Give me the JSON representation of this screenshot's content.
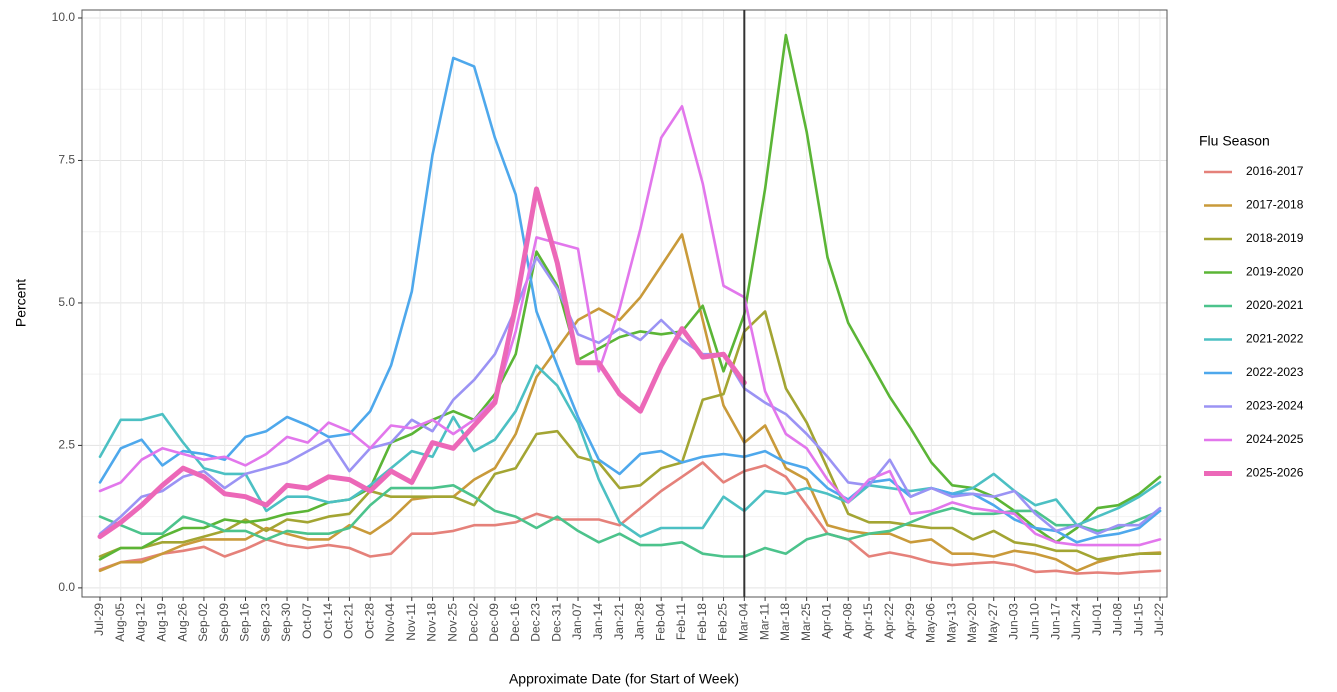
{
  "chart_data": {
    "type": "line",
    "xlabel": "Approximate Date (for Start of Week)",
    "ylabel": "Percent",
    "legend_title": "Flu Season",
    "legend": "right",
    "grid": true,
    "vline": "Mar-04",
    "ylim": [
      -0.16,
      10.14
    ],
    "yticks": [
      {
        "value": 0,
        "label": "0.0"
      },
      2.5,
      {
        "value": 5,
        "label": "5.0"
      },
      7.5,
      {
        "value": 10,
        "label": "10.0"
      }
    ],
    "categories": [
      "Jul-29",
      "Aug-05",
      "Aug-12",
      "Aug-19",
      "Aug-26",
      "Sep-02",
      "Sep-09",
      "Sep-16",
      "Sep-23",
      "Sep-30",
      "Oct-07",
      "Oct-14",
      "Oct-21",
      "Oct-28",
      "Nov-04",
      "Nov-11",
      "Nov-18",
      "Nov-25",
      "Dec-02",
      "Dec-09",
      "Dec-16",
      "Dec-23",
      "Dec-31",
      "Jan-07",
      "Jan-14",
      "Jan-21",
      "Jan-28",
      "Feb-04",
      "Feb-11",
      "Feb-18",
      "Feb-25",
      "Mar-04",
      "Mar-11",
      "Mar-18",
      "Mar-25",
      "Apr-01",
      "Apr-08",
      "Apr-15",
      "Apr-22",
      "Apr-29",
      "May-06",
      "May-13",
      "May-20",
      "May-27",
      "Jun-03",
      "Jun-10",
      "Jun-17",
      "Jun-24",
      "Jul-01",
      "Jul-08",
      "Jul-15",
      "Jul-22"
    ],
    "series": [
      {
        "name": "2016-2017",
        "color": "#E5817A",
        "values": [
          0.32,
          0.45,
          0.5,
          0.6,
          0.65,
          0.72,
          0.55,
          0.68,
          0.85,
          0.75,
          0.7,
          0.75,
          0.7,
          0.55,
          0.6,
          0.95,
          0.95,
          1.0,
          1.1,
          1.1,
          1.15,
          1.3,
          1.2,
          1.2,
          1.2,
          1.1,
          1.4,
          1.7,
          1.95,
          2.2,
          1.85,
          2.05,
          2.15,
          1.95,
          1.45,
          0.95,
          0.85,
          0.55,
          0.62,
          0.55,
          0.45,
          0.4,
          0.43,
          0.45,
          0.4,
          0.28,
          0.3,
          0.25,
          0.27,
          0.25,
          0.28,
          0.3
        ]
      },
      {
        "name": "2017-2018",
        "color": "#C99A3A",
        "values": [
          0.3,
          0.45,
          0.45,
          0.6,
          0.75,
          0.85,
          0.85,
          0.85,
          1.05,
          0.95,
          0.85,
          0.85,
          1.1,
          0.95,
          1.2,
          1.55,
          1.6,
          1.6,
          1.9,
          2.1,
          2.7,
          3.7,
          4.2,
          4.7,
          4.9,
          4.7,
          5.1,
          5.65,
          6.2,
          4.7,
          3.2,
          2.55,
          2.85,
          2.1,
          1.9,
          1.1,
          1.0,
          0.95,
          0.95,
          0.8,
          0.85,
          0.6,
          0.6,
          0.55,
          0.65,
          0.6,
          0.5,
          0.3,
          0.45,
          0.55,
          0.6,
          0.62
        ]
      },
      {
        "name": "2018-2019",
        "color": "#A3A533",
        "values": [
          0.55,
          0.7,
          0.7,
          0.8,
          0.8,
          0.9,
          1.0,
          1.2,
          1.0,
          1.2,
          1.15,
          1.25,
          1.3,
          1.7,
          1.6,
          1.6,
          1.6,
          1.6,
          1.45,
          2.0,
          2.1,
          2.7,
          2.75,
          2.3,
          2.2,
          1.75,
          1.8,
          2.1,
          2.2,
          3.3,
          3.4,
          4.5,
          4.85,
          3.5,
          2.9,
          2.1,
          1.3,
          1.15,
          1.15,
          1.1,
          1.05,
          1.05,
          0.85,
          1.0,
          0.8,
          0.75,
          0.65,
          0.65,
          0.5,
          0.55,
          0.6,
          0.6
        ]
      },
      {
        "name": "2019-2020",
        "color": "#5BB536",
        "values": [
          0.5,
          0.7,
          0.7,
          0.9,
          1.05,
          1.05,
          1.2,
          1.15,
          1.2,
          1.3,
          1.35,
          1.5,
          1.55,
          1.75,
          2.55,
          2.7,
          2.95,
          3.1,
          2.95,
          3.4,
          4.1,
          5.9,
          5.3,
          4.0,
          4.2,
          4.4,
          4.5,
          4.45,
          4.5,
          4.95,
          3.8,
          4.8,
          7.0,
          9.7,
          8.0,
          5.8,
          4.65,
          4.0,
          3.35,
          2.8,
          2.2,
          1.8,
          1.75,
          1.6,
          1.35,
          1.05,
          0.8,
          1.05,
          1.4,
          1.45,
          1.65,
          1.95
        ]
      },
      {
        "name": "2020-2021",
        "color": "#4CC38C",
        "values": [
          1.25,
          1.1,
          0.95,
          0.95,
          1.25,
          1.15,
          1.0,
          1.0,
          0.85,
          1.0,
          0.95,
          0.95,
          1.05,
          1.45,
          1.75,
          1.75,
          1.75,
          1.8,
          1.6,
          1.35,
          1.25,
          1.05,
          1.25,
          1.0,
          0.8,
          0.95,
          0.75,
          0.75,
          0.8,
          0.6,
          0.55,
          0.55,
          0.7,
          0.6,
          0.85,
          0.95,
          0.85,
          0.95,
          1.0,
          1.15,
          1.3,
          1.4,
          1.3,
          1.3,
          1.35,
          1.35,
          1.1,
          1.1,
          1.0,
          1.05,
          1.2,
          1.35
        ]
      },
      {
        "name": "2021-2022",
        "color": "#4CC0C3",
        "values": [
          2.3,
          2.95,
          2.95,
          3.05,
          2.55,
          2.1,
          2.0,
          2.0,
          1.35,
          1.6,
          1.6,
          1.5,
          1.55,
          1.8,
          2.1,
          2.4,
          2.3,
          3.0,
          2.4,
          2.6,
          3.1,
          3.9,
          3.55,
          2.9,
          1.9,
          1.15,
          0.9,
          1.05,
          1.05,
          1.05,
          1.6,
          1.35,
          1.7,
          1.65,
          1.75,
          1.65,
          1.5,
          1.8,
          1.75,
          1.7,
          1.75,
          1.65,
          1.75,
          2.0,
          1.7,
          1.45,
          1.55,
          1.1,
          1.25,
          1.4,
          1.6,
          1.85
        ]
      },
      {
        "name": "2022-2023",
        "color": "#4EA8EC",
        "values": [
          1.85,
          2.45,
          2.6,
          2.15,
          2.4,
          2.35,
          2.25,
          2.65,
          2.75,
          3.0,
          2.85,
          2.65,
          2.7,
          3.1,
          3.9,
          5.2,
          7.6,
          9.3,
          9.15,
          7.9,
          6.9,
          4.85,
          3.9,
          3.0,
          2.25,
          2.0,
          2.35,
          2.4,
          2.2,
          2.3,
          2.35,
          2.3,
          2.4,
          2.2,
          2.1,
          1.75,
          1.55,
          1.85,
          1.9,
          1.6,
          1.75,
          1.65,
          1.65,
          1.45,
          1.2,
          1.05,
          1.0,
          0.8,
          0.9,
          0.95,
          1.05,
          1.35
        ]
      },
      {
        "name": "2023-2024",
        "color": "#9B93F4",
        "values": [
          0.95,
          1.25,
          1.6,
          1.7,
          1.95,
          2.05,
          1.75,
          2.0,
          2.1,
          2.2,
          2.4,
          2.6,
          2.05,
          2.45,
          2.55,
          2.95,
          2.75,
          3.3,
          3.65,
          4.1,
          4.9,
          5.8,
          5.25,
          4.45,
          4.3,
          4.55,
          4.35,
          4.7,
          4.35,
          4.1,
          4.1,
          3.5,
          3.25,
          3.05,
          2.7,
          2.3,
          1.85,
          1.8,
          2.25,
          1.6,
          1.75,
          1.6,
          1.65,
          1.6,
          1.7,
          1.3,
          1.0,
          1.1,
          0.95,
          1.1,
          1.1,
          1.4
        ]
      },
      {
        "name": "2024-2025",
        "color": "#E277EC",
        "values": [
          1.7,
          1.85,
          2.25,
          2.45,
          2.35,
          2.25,
          2.3,
          2.15,
          2.35,
          2.65,
          2.55,
          2.9,
          2.75,
          2.45,
          2.85,
          2.8,
          2.95,
          2.7,
          2.95,
          3.3,
          4.5,
          6.15,
          6.05,
          5.95,
          3.8,
          4.9,
          6.3,
          7.9,
          8.45,
          7.1,
          5.3,
          5.1,
          3.45,
          2.7,
          2.45,
          1.9,
          1.5,
          1.9,
          2.05,
          1.3,
          1.35,
          1.5,
          1.4,
          1.35,
          1.3,
          0.95,
          0.8,
          0.75,
          0.75,
          0.75,
          0.75,
          0.85
        ]
      },
      {
        "name": "2025-2026",
        "color": "#EC68B8",
        "values": [
          0.9,
          1.15,
          1.45,
          1.8,
          2.1,
          1.95,
          1.65,
          1.6,
          1.45,
          1.8,
          1.75,
          1.95,
          1.9,
          1.7,
          2.05,
          1.85,
          2.55,
          2.45,
          2.85,
          3.25,
          4.95,
          7.0,
          5.7,
          3.95,
          3.95,
          3.4,
          3.1,
          3.9,
          4.55,
          4.05,
          4.1,
          3.6,
          null,
          null,
          null,
          null,
          null,
          null,
          null,
          null,
          null,
          null,
          null,
          null,
          null,
          null,
          null,
          null,
          null,
          null,
          null,
          null
        ]
      }
    ]
  }
}
